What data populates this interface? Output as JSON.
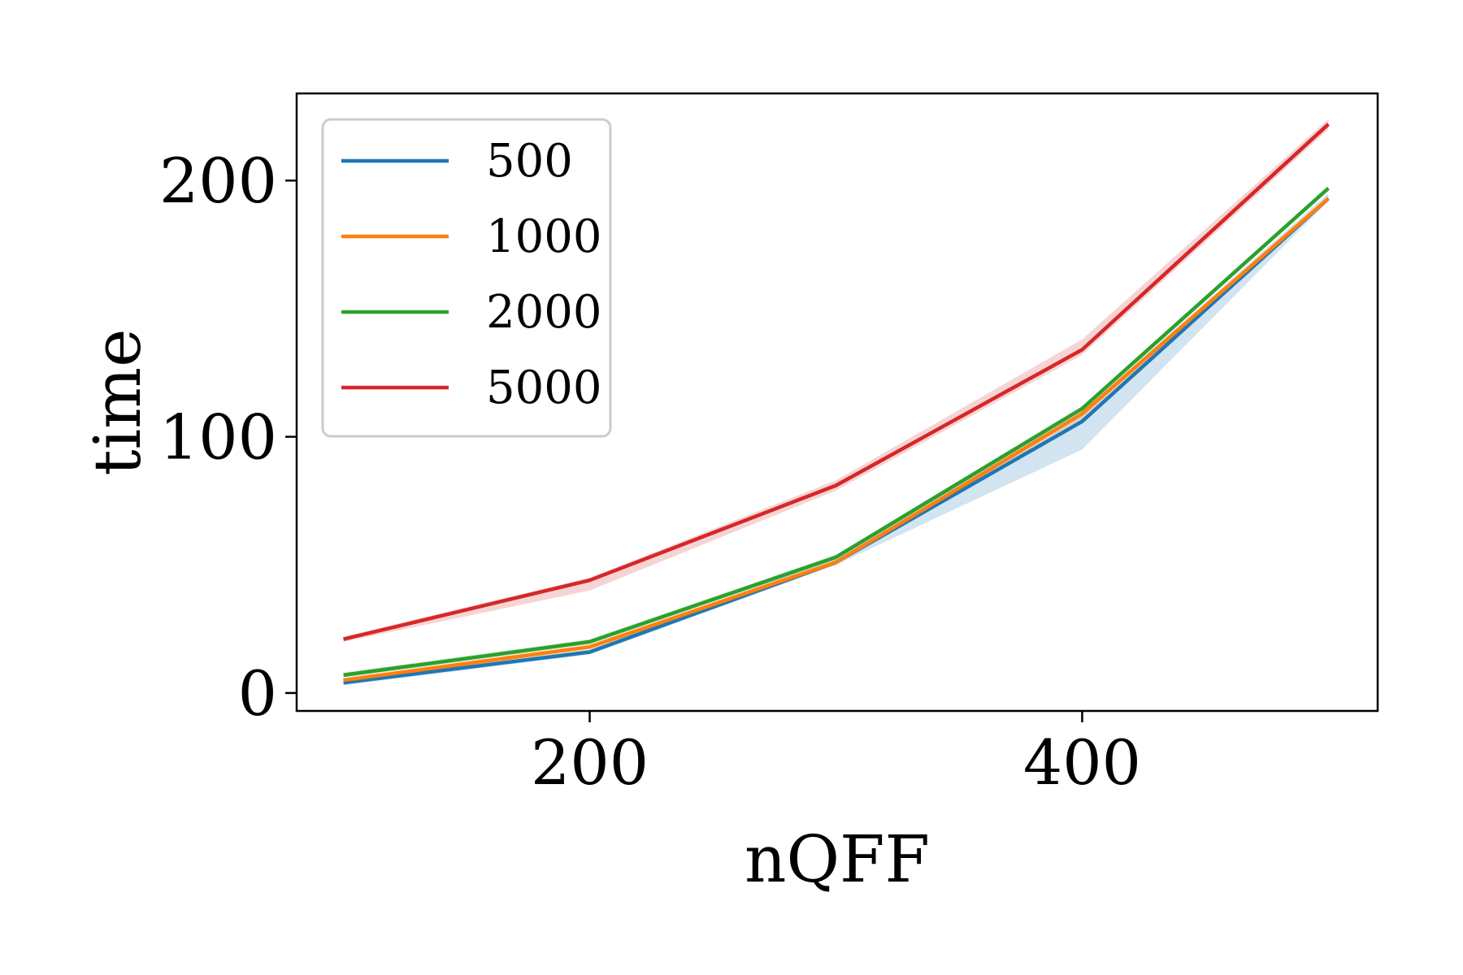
{
  "chart_data": {
    "type": "line",
    "xlabel": "nQFF",
    "ylabel": "time",
    "xlim": [
      81,
      520
    ],
    "ylim": [
      -7,
      234
    ],
    "x_ticks": [
      200,
      400
    ],
    "y_ticks": [
      0,
      100,
      200
    ],
    "x": [
      100,
      200,
      300,
      400,
      500
    ],
    "legend_position": "top-left",
    "grid": false,
    "series": [
      {
        "name": "500",
        "color": "#1f77b4",
        "values": [
          4,
          16,
          51,
          106,
          193
        ],
        "band_lower": [
          3,
          15,
          50,
          95,
          192
        ],
        "band_upper": [
          5,
          17,
          53,
          110,
          195
        ]
      },
      {
        "name": "1000",
        "color": "#ff7f0e",
        "values": [
          5,
          18,
          51,
          109,
          193
        ],
        "band_lower": [
          4,
          17,
          50,
          107,
          192
        ],
        "band_upper": [
          6,
          19,
          52,
          110,
          194
        ]
      },
      {
        "name": "2000",
        "color": "#2ca02c",
        "values": [
          7,
          20,
          53,
          111,
          197
        ],
        "band_lower": [
          6,
          19,
          52,
          110,
          196
        ],
        "band_upper": [
          8,
          21,
          54,
          112,
          198
        ]
      },
      {
        "name": "5000",
        "color": "#d62728",
        "values": [
          21,
          44,
          81,
          134,
          222
        ],
        "band_lower": [
          20,
          40,
          79,
          132,
          220
        ],
        "band_upper": [
          22,
          45,
          83,
          138,
          224
        ]
      }
    ]
  }
}
